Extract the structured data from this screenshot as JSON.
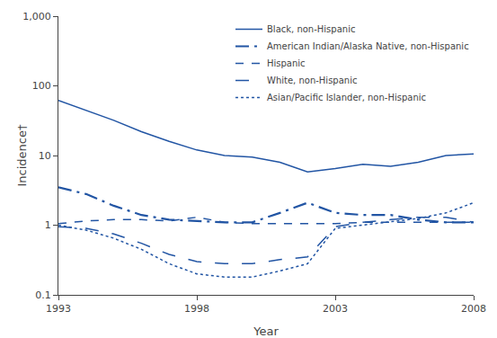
{
  "chart_data": {
    "type": "line",
    "x": [
      1993,
      1994,
      1995,
      1996,
      1997,
      1998,
      1999,
      2000,
      2001,
      2002,
      2003,
      2004,
      2005,
      2006,
      2007,
      2008
    ],
    "series": [
      {
        "name": "Black, non-Hispanic",
        "color": "#2255a4",
        "line_style": "solid",
        "values": [
          62,
          45,
          32,
          22,
          16,
          12,
          10,
          9.5,
          8.0,
          5.8,
          6.5,
          7.5,
          7.0,
          8.0,
          10.0,
          10.5
        ]
      },
      {
        "name": "American Indian/Alaska Native, non-Hispanic",
        "color": "#2255a4",
        "line_style": "longdashdot",
        "values": [
          3.5,
          2.8,
          1.9,
          1.4,
          1.2,
          1.15,
          1.1,
          1.1,
          1.5,
          2.1,
          1.5,
          1.4,
          1.4,
          1.2,
          1.1,
          1.1
        ]
      },
      {
        "name": "Hispanic",
        "color": "#2255a4",
        "line_style": "dash",
        "values": [
          1.05,
          1.15,
          1.2,
          1.2,
          1.15,
          1.3,
          1.1,
          1.05,
          1.05,
          1.05,
          1.05,
          1.1,
          1.1,
          1.1,
          1.1,
          1.1
        ]
      },
      {
        "name": "White, non-Hispanic",
        "color": "#2255a4",
        "line_style": "longdash",
        "values": [
          0.95,
          0.9,
          0.75,
          0.55,
          0.38,
          0.3,
          0.28,
          0.28,
          0.32,
          0.35,
          0.95,
          1.1,
          1.2,
          1.3,
          1.3,
          1.1
        ]
      },
      {
        "name": "Asian/Pacific Islander, non-Hispanic",
        "color": "#2255a4",
        "line_style": "dot",
        "values": [
          1.0,
          0.85,
          0.65,
          0.45,
          0.28,
          0.2,
          0.18,
          0.18,
          0.22,
          0.28,
          0.9,
          1.0,
          1.1,
          1.25,
          1.5,
          2.1
        ]
      }
    ],
    "xlabel": "Year",
    "ylabel": "Incidence†",
    "xlim": [
      1993,
      2008
    ],
    "xticks": [
      1993,
      1998,
      2003,
      2008
    ],
    "ylim": [
      0.1,
      1000
    ],
    "yticks": [
      0.1,
      1,
      10,
      100,
      {
        "value": 1000,
        "label": "1,000"
      }
    ],
    "log": "y",
    "grid": false,
    "legend": "upper right"
  }
}
